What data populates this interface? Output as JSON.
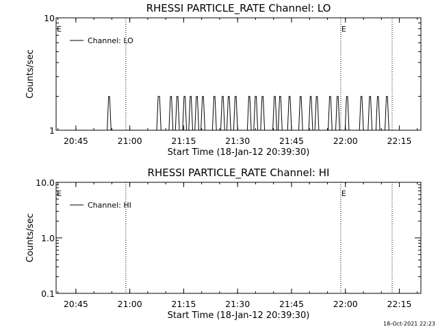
{
  "timestamp": "18-Oct-2021 22:23",
  "chart_data": [
    {
      "type": "line",
      "title": "RHESSI PARTICLE_RATE Channel: LO",
      "xlabel": "Start Time (18-Jan-12 20:39:30)",
      "ylabel": "Counts/sec",
      "yscale": "log",
      "ylim": [
        1,
        10
      ],
      "yticks": [
        {
          "v": 1,
          "label": "1"
        },
        {
          "v": 10,
          "label": "10"
        }
      ],
      "xlim": [
        "20:39:30",
        "22:21:00"
      ],
      "xticks": [
        "20:45",
        "21:00",
        "21:15",
        "21:30",
        "21:45",
        "22:00",
        "22:15"
      ],
      "xtick_minutes": [
        5.5,
        20.5,
        35.5,
        50.5,
        65.5,
        80.5,
        95.5
      ],
      "legend": {
        "label": "Channel: LO",
        "position": "top-left"
      },
      "event_lines": [
        {
          "minute": 19.4,
          "label": ""
        },
        {
          "minute": 79.2,
          "label": "E"
        },
        {
          "minute": 93.5,
          "label": ""
        }
      ],
      "edge_label": "E",
      "series": [
        {
          "name": "Channel: LO",
          "x_minutes": [
            0,
            14.2,
            14.6,
            14.9,
            15.3,
            28.0,
            28.4,
            28.8,
            29.2,
            31.4,
            31.8,
            32.1,
            32.5,
            33.2,
            33.6,
            33.9,
            34.3,
            35.2,
            35.6,
            35.9,
            36.3,
            36.9,
            37.3,
            37.6,
            38.0,
            38.6,
            39.0,
            39.3,
            39.7,
            40.3,
            40.7,
            41.0,
            41.4,
            43.5,
            43.9,
            44.2,
            44.6,
            45.8,
            46.2,
            46.5,
            46.9,
            47.5,
            47.9,
            48.2,
            48.6,
            49.4,
            49.8,
            50.1,
            50.5,
            53.2,
            53.6,
            53.9,
            54.3,
            55.0,
            55.4,
            55.7,
            56.1,
            56.9,
            57.3,
            57.6,
            58.0,
            60.3,
            60.7,
            61.0,
            61.4,
            61.8,
            62.2,
            62.5,
            62.9,
            64.4,
            64.8,
            65.1,
            65.5,
            67.5,
            67.9,
            68.2,
            68.6,
            70.3,
            70.7,
            71.0,
            71.4,
            72.0,
            72.4,
            72.7,
            73.1,
            75.7,
            76.1,
            76.4,
            76.8,
            77.8,
            78.2,
            78.5,
            78.9,
            80.4,
            80.8,
            81.1,
            81.5,
            84.4,
            84.8,
            85.1,
            85.5,
            86.8,
            87.2,
            87.5,
            87.9,
            89.0,
            89.4,
            89.7,
            90.1,
            91.5,
            91.9,
            92.2,
            92.6,
            100
          ],
          "y": [
            1,
            1,
            2,
            2,
            1,
            1,
            2,
            2,
            1,
            1,
            2,
            2,
            1,
            1,
            2,
            2,
            1,
            1,
            2,
            2,
            1,
            1,
            2,
            2,
            1,
            1,
            2,
            2,
            1,
            1,
            2,
            2,
            1,
            1,
            2,
            2,
            1,
            1,
            2,
            2,
            1,
            1,
            2,
            2,
            1,
            1,
            2,
            2,
            1,
            1,
            2,
            2,
            1,
            1,
            2,
            2,
            1,
            1,
            2,
            2,
            1,
            1,
            2,
            2,
            1,
            1,
            2,
            2,
            1,
            1,
            2,
            2,
            1,
            1,
            2,
            2,
            1,
            1,
            2,
            2,
            1,
            1,
            2,
            2,
            1,
            1,
            2,
            2,
            1,
            1,
            2,
            2,
            1,
            1,
            2,
            2,
            1,
            1,
            2,
            2,
            1,
            1,
            2,
            2,
            1,
            1,
            2,
            2,
            1,
            1,
            2,
            2,
            1,
            1
          ]
        }
      ]
    },
    {
      "type": "line",
      "title": "RHESSI PARTICLE_RATE Channel: HI",
      "xlabel": "Start Time (18-Jan-12 20:39:30)",
      "ylabel": "Counts/sec",
      "yscale": "log",
      "ylim": [
        0.1,
        10
      ],
      "yticks": [
        {
          "v": 0.1,
          "label": "0.1"
        },
        {
          "v": 1,
          "label": "1.0"
        },
        {
          "v": 10,
          "label": "10.0"
        }
      ],
      "xlim": [
        "20:39:30",
        "22:21:00"
      ],
      "xticks": [
        "20:45",
        "21:00",
        "21:15",
        "21:30",
        "21:45",
        "22:00",
        "22:15"
      ],
      "xtick_minutes": [
        5.5,
        20.5,
        35.5,
        50.5,
        65.5,
        80.5,
        95.5
      ],
      "legend": {
        "label": "Channel: HI",
        "position": "top-left"
      },
      "event_lines": [
        {
          "minute": 19.4,
          "label": ""
        },
        {
          "minute": 79.2,
          "label": "E"
        },
        {
          "minute": 93.5,
          "label": ""
        }
      ],
      "edge_label": "E",
      "series": [
        {
          "name": "Channel: HI",
          "x_minutes": [],
          "y": []
        }
      ]
    }
  ]
}
